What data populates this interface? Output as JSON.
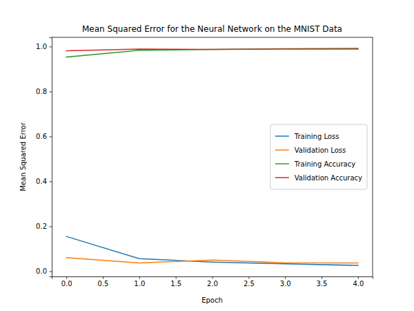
{
  "chart_data": {
    "type": "line",
    "title": "Mean Squared Error for the Neural Network on the MNIST Data",
    "x_label": "Epoch",
    "y_label": "Mean Squared Error",
    "x": [
      0,
      1,
      2,
      3,
      4
    ],
    "series": [
      {
        "name": "Training Loss",
        "color": "#1f77b4",
        "values": [
          0.155,
          0.056,
          0.041,
          0.033,
          0.026
        ]
      },
      {
        "name": "Validation Loss",
        "color": "#ff7f0e",
        "values": [
          0.061,
          0.037,
          0.05,
          0.038,
          0.037
        ]
      },
      {
        "name": "Training Accuracy",
        "color": "#2ca02c",
        "values": [
          0.953,
          0.983,
          0.987,
          0.99,
          0.992
        ]
      },
      {
        "name": "Validation Accuracy",
        "color": "#d62728",
        "values": [
          0.981,
          0.989,
          0.987,
          0.989,
          0.989
        ]
      }
    ],
    "xlim": [
      -0.2,
      4.2
    ],
    "xticks": [
      {
        "value": 0,
        "label": "0.0"
      },
      {
        "value": 0.5,
        "label": "0.5"
      },
      {
        "value": 1,
        "label": "1.0"
      },
      {
        "value": 1.5,
        "label": "1.5"
      },
      {
        "value": 2,
        "label": "2.0"
      },
      {
        "value": 2.5,
        "label": "2.5"
      },
      {
        "value": 3,
        "label": "3.0"
      },
      {
        "value": 3.5,
        "label": "3.5"
      },
      {
        "value": 4,
        "label": "4.0"
      }
    ],
    "ylim": [
      -0.023,
      1.041
    ],
    "yticks": [
      {
        "value": 0,
        "label": "0.0"
      },
      {
        "value": 0.2,
        "label": "0.2"
      },
      {
        "value": 0.4,
        "label": "0.4"
      },
      {
        "value": 0.6,
        "label": "0.6"
      },
      {
        "value": 0.8,
        "label": "0.8"
      },
      {
        "value": 1,
        "label": "1.0"
      }
    ],
    "legend": "right"
  }
}
